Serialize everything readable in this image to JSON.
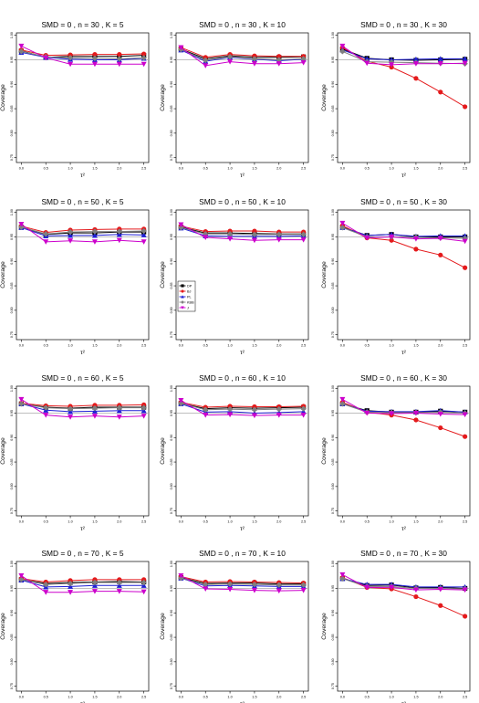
{
  "figure": {
    "ylabel": "Coverage",
    "xlabel": "τ²",
    "x_ticks": [
      "0.0",
      "0.5",
      "1.0",
      "1.5",
      "2.0",
      "2.5"
    ],
    "y_ticks": [
      "0.75",
      "0.80",
      "0.85",
      "0.90",
      "0.95",
      "1.00"
    ],
    "reference_line": 0.95,
    "legend": {
      "location": "panel n=50, K=10, left",
      "entries": [
        "DP",
        "BJ",
        "PL",
        "KBB",
        "J"
      ]
    }
  },
  "colors": {
    "DP": "#000000",
    "BJ": "#e41a1c",
    "PL": "#1f1fd6",
    "KBB": "#7f7f7f",
    "J": "#cc00cc",
    "reference": "#aaaaaa"
  },
  "chart_data": [
    {
      "type": "line",
      "title": "SMD = 0 , n = 30 , K = 5",
      "x": [
        0,
        0.5,
        1,
        1.5,
        2,
        2.5
      ],
      "ylim": [
        0.74,
        1.005
      ],
      "series": [
        {
          "name": "DP",
          "values": [
            0.968,
            0.955,
            0.957,
            0.957,
            0.957,
            0.959
          ]
        },
        {
          "name": "BJ",
          "values": [
            0.97,
            0.959,
            0.96,
            0.961,
            0.961,
            0.962
          ]
        },
        {
          "name": "PL",
          "values": [
            0.965,
            0.955,
            0.951,
            0.95,
            0.95,
            0.953
          ]
        },
        {
          "name": "KBB",
          "values": [
            0.967,
            0.956,
            0.954,
            0.953,
            0.952,
            0.954
          ]
        },
        {
          "name": "J",
          "values": [
            0.978,
            0.954,
            0.941,
            0.941,
            0.941,
            0.941
          ]
        }
      ]
    },
    {
      "type": "line",
      "title": "SMD = 0 , n = 30 , K = 10",
      "x": [
        0,
        0.5,
        1,
        1.5,
        2,
        2.5
      ],
      "ylim": [
        0.74,
        1.005
      ],
      "series": [
        {
          "name": "DP",
          "values": [
            0.972,
            0.952,
            0.958,
            0.955,
            0.955,
            0.956
          ]
        },
        {
          "name": "BJ",
          "values": [
            0.975,
            0.955,
            0.961,
            0.958,
            0.957,
            0.957
          ]
        },
        {
          "name": "PL",
          "values": [
            0.97,
            0.947,
            0.955,
            0.951,
            0.948,
            0.951
          ]
        },
        {
          "name": "KBB",
          "values": [
            0.971,
            0.949,
            0.956,
            0.952,
            0.95,
            0.952
          ]
        },
        {
          "name": "J",
          "values": [
            0.975,
            0.938,
            0.946,
            0.942,
            0.942,
            0.944
          ]
        }
      ]
    },
    {
      "type": "line",
      "title": "SMD = 0 , n = 30 , K = 30",
      "x": [
        0,
        0.5,
        1,
        1.5,
        2,
        2.5
      ],
      "ylim": [
        0.74,
        1.005
      ],
      "series": [
        {
          "name": "DP",
          "values": [
            0.972,
            0.953,
            0.95,
            0.949,
            0.95,
            0.951
          ]
        },
        {
          "name": "BJ",
          "values": [
            0.975,
            0.947,
            0.935,
            0.912,
            0.884,
            0.854
          ]
        },
        {
          "name": "PL",
          "values": [
            0.97,
            0.952,
            0.95,
            0.951,
            0.952,
            0.952
          ]
        },
        {
          "name": "KBB",
          "values": [
            0.967,
            0.946,
            0.945,
            0.944,
            0.943,
            0.942
          ]
        },
        {
          "name": "J",
          "values": [
            0.978,
            0.943,
            0.94,
            0.942,
            0.942,
            0.943
          ]
        }
      ]
    },
    {
      "type": "line",
      "title": "SMD = 0 , n = 50 , K = 5",
      "x": [
        0,
        0.5,
        1,
        1.5,
        2,
        2.5
      ],
      "ylim": [
        0.74,
        1.005
      ],
      "series": [
        {
          "name": "DP",
          "values": [
            0.97,
            0.955,
            0.958,
            0.958,
            0.96,
            0.96
          ]
        },
        {
          "name": "BJ",
          "values": [
            0.972,
            0.959,
            0.964,
            0.965,
            0.966,
            0.966
          ]
        },
        {
          "name": "PL",
          "values": [
            0.969,
            0.952,
            0.953,
            0.953,
            0.955,
            0.954
          ]
        },
        {
          "name": "KBB",
          "values": [
            0.97,
            0.956,
            0.96,
            0.961,
            0.961,
            0.962
          ]
        },
        {
          "name": "J",
          "values": [
            0.976,
            0.94,
            0.942,
            0.94,
            0.943,
            0.94
          ]
        }
      ]
    },
    {
      "type": "line",
      "title": "SMD = 0 , n = 50 , K = 10",
      "x": [
        0,
        0.5,
        1,
        1.5,
        2,
        2.5
      ],
      "ylim": [
        0.74,
        1.005
      ],
      "series": [
        {
          "name": "DP",
          "values": [
            0.97,
            0.958,
            0.958,
            0.957,
            0.956,
            0.956
          ]
        },
        {
          "name": "BJ",
          "values": [
            0.972,
            0.961,
            0.962,
            0.962,
            0.96,
            0.96
          ]
        },
        {
          "name": "PL",
          "values": [
            0.968,
            0.952,
            0.951,
            0.951,
            0.951,
            0.952
          ]
        },
        {
          "name": "KBB",
          "values": [
            0.969,
            0.956,
            0.956,
            0.955,
            0.955,
            0.955
          ]
        },
        {
          "name": "J",
          "values": [
            0.975,
            0.949,
            0.946,
            0.943,
            0.944,
            0.944
          ]
        }
      ]
    },
    {
      "type": "line",
      "title": "SMD = 0 , n = 50 , K = 30",
      "x": [
        0,
        0.5,
        1,
        1.5,
        2,
        2.5
      ],
      "ylim": [
        0.74,
        1.005
      ],
      "series": [
        {
          "name": "DP",
          "values": [
            0.97,
            0.953,
            0.955,
            0.95,
            0.95,
            0.95
          ]
        },
        {
          "name": "BJ",
          "values": [
            0.973,
            0.948,
            0.943,
            0.925,
            0.913,
            0.887
          ]
        },
        {
          "name": "PL",
          "values": [
            0.969,
            0.953,
            0.955,
            0.951,
            0.952,
            0.952
          ]
        },
        {
          "name": "KBB",
          "values": [
            0.969,
            0.95,
            0.95,
            0.949,
            0.948,
            0.947
          ]
        },
        {
          "name": "J",
          "values": [
            0.978,
            0.948,
            0.95,
            0.946,
            0.947,
            0.941
          ]
        }
      ]
    },
    {
      "type": "line",
      "title": "SMD = 0 , n = 60 , K = 5",
      "x": [
        0,
        0.5,
        1,
        1.5,
        2,
        2.5
      ],
      "ylim": [
        0.74,
        1.005
      ],
      "series": [
        {
          "name": "DP",
          "values": [
            0.969,
            0.962,
            0.96,
            0.962,
            0.962,
            0.962
          ]
        },
        {
          "name": "BJ",
          "values": [
            0.97,
            0.965,
            0.964,
            0.966,
            0.966,
            0.967
          ]
        },
        {
          "name": "PL",
          "values": [
            0.969,
            0.956,
            0.953,
            0.954,
            0.955,
            0.955
          ]
        },
        {
          "name": "KBB",
          "values": [
            0.969,
            0.961,
            0.959,
            0.96,
            0.961,
            0.961
          ]
        },
        {
          "name": "J",
          "values": [
            0.978,
            0.946,
            0.942,
            0.944,
            0.942,
            0.944
          ]
        }
      ]
    },
    {
      "type": "line",
      "title": "SMD = 0 , n = 60 , K = 10",
      "x": [
        0,
        0.5,
        1,
        1.5,
        2,
        2.5
      ],
      "ylim": [
        0.74,
        1.005
      ],
      "series": [
        {
          "name": "DP",
          "values": [
            0.97,
            0.959,
            0.961,
            0.96,
            0.961,
            0.962
          ]
        },
        {
          "name": "BJ",
          "values": [
            0.972,
            0.962,
            0.964,
            0.963,
            0.963,
            0.964
          ]
        },
        {
          "name": "PL",
          "values": [
            0.969,
            0.952,
            0.953,
            0.95,
            0.951,
            0.953
          ]
        },
        {
          "name": "KBB",
          "values": [
            0.97,
            0.957,
            0.958,
            0.957,
            0.958,
            0.959
          ]
        },
        {
          "name": "J",
          "values": [
            0.976,
            0.946,
            0.947,
            0.945,
            0.946,
            0.946
          ]
        }
      ]
    },
    {
      "type": "line",
      "title": "SMD = 0 , n = 60 , K = 30",
      "x": [
        0,
        0.5,
        1,
        1.5,
        2,
        2.5
      ],
      "ylim": [
        0.74,
        1.005
      ],
      "series": [
        {
          "name": "DP",
          "values": [
            0.969,
            0.955,
            0.952,
            0.952,
            0.954,
            0.952
          ]
        },
        {
          "name": "BJ",
          "values": [
            0.972,
            0.952,
            0.946,
            0.936,
            0.92,
            0.902
          ]
        },
        {
          "name": "PL",
          "values": [
            0.969,
            0.954,
            0.953,
            0.953,
            0.955,
            0.952
          ]
        },
        {
          "name": "KBB",
          "values": [
            0.969,
            0.952,
            0.951,
            0.951,
            0.952,
            0.95
          ]
        },
        {
          "name": "J",
          "values": [
            0.978,
            0.95,
            0.949,
            0.95,
            0.948,
            0.947
          ]
        }
      ]
    },
    {
      "type": "line",
      "title": "SMD = 0 , n = 70 , K = 5",
      "x": [
        0,
        0.5,
        1,
        1.5,
        2,
        2.5
      ],
      "ylim": [
        0.74,
        1.005
      ],
      "series": [
        {
          "name": "DP",
          "values": [
            0.968,
            0.96,
            0.962,
            0.963,
            0.964,
            0.963
          ]
        },
        {
          "name": "BJ",
          "values": [
            0.97,
            0.963,
            0.966,
            0.968,
            0.968,
            0.968
          ]
        },
        {
          "name": "PL",
          "values": [
            0.967,
            0.953,
            0.954,
            0.956,
            0.956,
            0.956
          ]
        },
        {
          "name": "KBB",
          "values": [
            0.968,
            0.958,
            0.96,
            0.962,
            0.962,
            0.962
          ]
        },
        {
          "name": "J",
          "values": [
            0.976,
            0.942,
            0.942,
            0.944,
            0.944,
            0.943
          ]
        }
      ]
    },
    {
      "type": "line",
      "title": "SMD = 0 , n = 70 , K = 10",
      "x": [
        0,
        0.5,
        1,
        1.5,
        2,
        2.5
      ],
      "ylim": [
        0.74,
        1.005
      ],
      "series": [
        {
          "name": "DP",
          "values": [
            0.972,
            0.96,
            0.961,
            0.961,
            0.959,
            0.959
          ]
        },
        {
          "name": "BJ",
          "values": [
            0.974,
            0.963,
            0.964,
            0.963,
            0.962,
            0.961
          ]
        },
        {
          "name": "PL",
          "values": [
            0.971,
            0.955,
            0.956,
            0.955,
            0.954,
            0.954
          ]
        },
        {
          "name": "KBB",
          "values": [
            0.971,
            0.958,
            0.959,
            0.958,
            0.957,
            0.957
          ]
        },
        {
          "name": "J",
          "values": [
            0.976,
            0.949,
            0.948,
            0.946,
            0.945,
            0.946
          ]
        }
      ]
    },
    {
      "type": "line",
      "title": "SMD = 0 , n = 70 , K = 30",
      "x": [
        0,
        0.5,
        1,
        1.5,
        2,
        2.5
      ],
      "ylim": [
        0.74,
        1.005
      ],
      "series": [
        {
          "name": "DP",
          "values": [
            0.97,
            0.956,
            0.957,
            0.951,
            0.952,
            0.95
          ]
        },
        {
          "name": "BJ",
          "values": [
            0.972,
            0.952,
            0.949,
            0.933,
            0.915,
            0.893
          ]
        },
        {
          "name": "PL",
          "values": [
            0.97,
            0.958,
            0.958,
            0.953,
            0.953,
            0.953
          ]
        },
        {
          "name": "KBB",
          "values": [
            0.97,
            0.954,
            0.954,
            0.95,
            0.95,
            0.949
          ]
        },
        {
          "name": "J",
          "values": [
            0.978,
            0.952,
            0.952,
            0.947,
            0.948,
            0.947
          ]
        }
      ]
    }
  ]
}
